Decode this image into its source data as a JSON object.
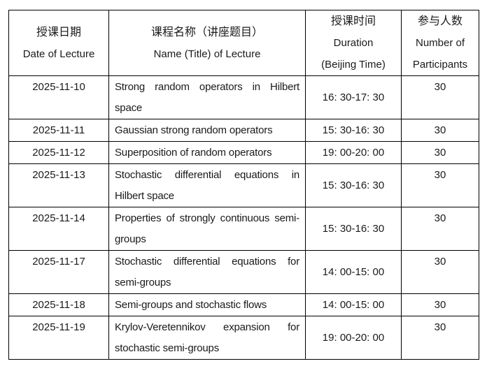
{
  "table": {
    "header": {
      "date": {
        "zh": "授课日期",
        "en": "Date of Lecture"
      },
      "name": {
        "zh": "课程名称（讲座题目）",
        "en": "Name (Title) of Lecture"
      },
      "time": {
        "zh": "授课时间",
        "en_line1": "Duration",
        "en_line2": "(Beijing Time)"
      },
      "participants": {
        "zh": "参与人数",
        "en_line1": "Number of",
        "en_line2": "Participants"
      }
    },
    "rows": [
      {
        "date": "2025-11-10",
        "title": "Strong random operators in Hilbert space",
        "time": "16: 30-17: 30",
        "participants": "30"
      },
      {
        "date": "2025-11-11",
        "title": "Gaussian strong random operators",
        "time": "15: 30-16: 30",
        "participants": "30"
      },
      {
        "date": "2025-11-12",
        "title": "Superposition of random operators",
        "time": "19: 00-20: 00",
        "participants": "30"
      },
      {
        "date": "2025-11-13",
        "title": "Stochastic differential equations in Hilbert space",
        "time": "15: 30-16: 30",
        "participants": "30"
      },
      {
        "date": "2025-11-14",
        "title": "Properties of strongly continuous semi-groups",
        "time": "15: 30-16: 30",
        "participants": "30"
      },
      {
        "date": "2025-11-17",
        "title": "Stochastic differential equations for semi-groups",
        "time": "14: 00-15: 00",
        "participants": "30"
      },
      {
        "date": "2025-11-18",
        "title": "Semi-groups and stochastic flows",
        "time": "14: 00-15: 00",
        "participants": "30"
      },
      {
        "date": "2025-11-19",
        "title": "Krylov-Veretennikov expansion for stochastic semi-groups",
        "time": "19: 00-20: 00",
        "participants": "30"
      }
    ]
  },
  "colors": {
    "border": "#000000",
    "text": "#1a1a1a",
    "background": "#ffffff"
  }
}
